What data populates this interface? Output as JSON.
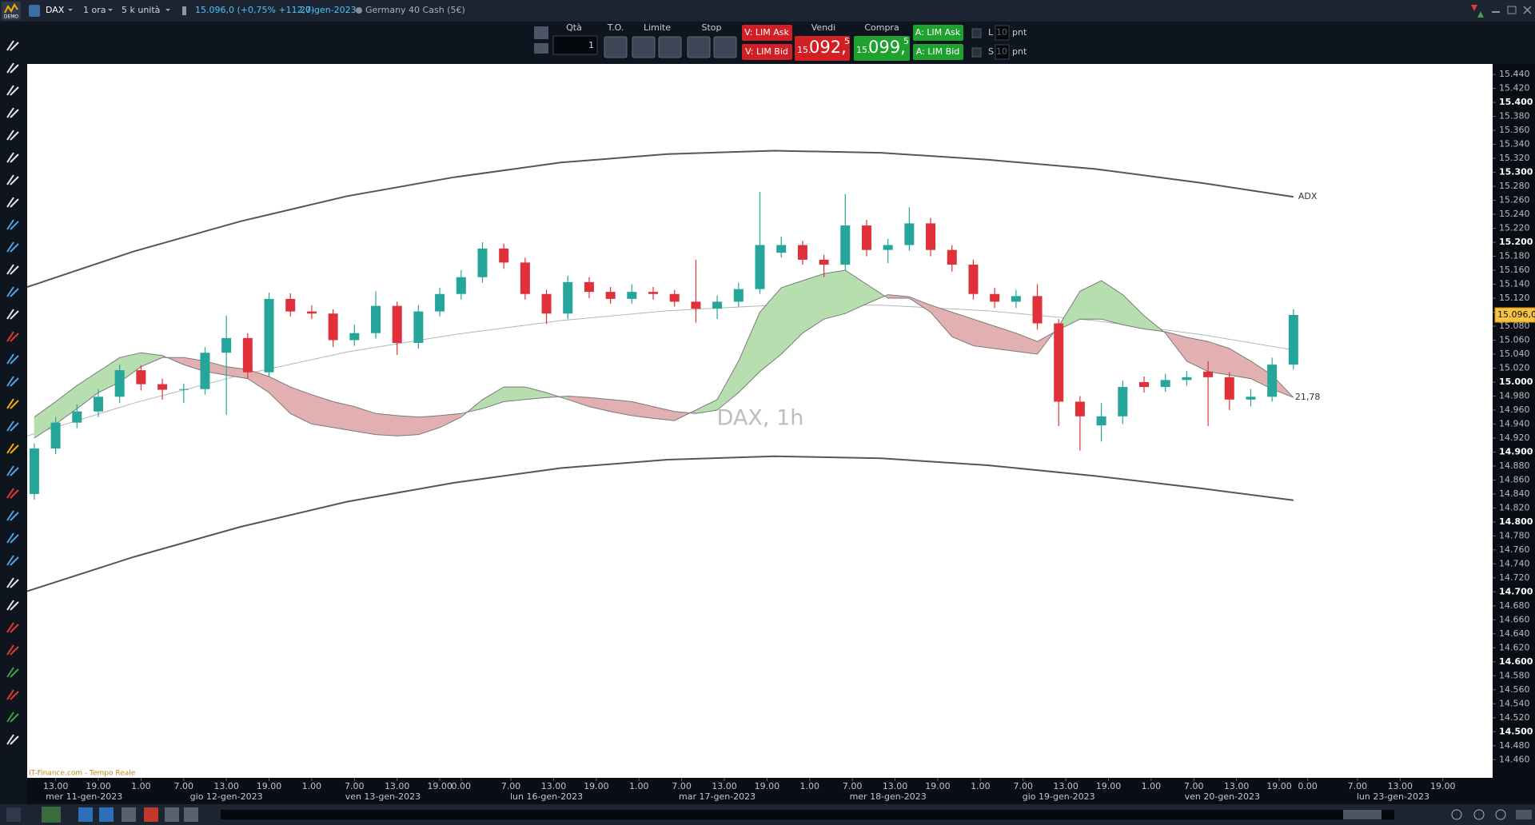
{
  "header": {
    "logo": "DEMO",
    "symbol": "DAX",
    "timeframe": "1 ora",
    "units": "5 k unità",
    "quote": "15.096,0 (+0,75% +112,7)",
    "date": "20-gen-2023",
    "instrument": "Germany 40 Cash (5€)"
  },
  "order_panel": {
    "qty_label": "Qtà",
    "qty": 1,
    "to_label": "T.O.",
    "limit_label": "Limite",
    "stop_label": "Stop",
    "sell_ask": "V: LIM Ask",
    "sell_bid": "V: LIM Bid",
    "sell_label": "Vendi",
    "sell_price": {
      "big": "15.",
      "mid": "092,",
      "small": "5"
    },
    "buy_label": "Compra",
    "buy_price": {
      "big": "15.",
      "mid": "099,",
      "small": "5"
    },
    "buy_ask": "A: LIM Ask",
    "buy_bid": "A: LIM Bid",
    "l_label": "L",
    "l_points": 10,
    "l_unit": "pnt",
    "s_label": "S",
    "s_points": 10,
    "s_unit": "pnt"
  },
  "chart_data": {
    "type": "candlestick",
    "watermark": "DAX, 1h",
    "upper_label": "ADX",
    "cloud_label": "21,78",
    "last_price": {
      "value": 15096,
      "label": "15.096,0"
    },
    "up_color": "#26a69a",
    "down_color": "#e0313b",
    "cloud_up_color": "#b6deae",
    "cloud_down_color": "#e2b0b0",
    "envelope_color": "#555555",
    "middle_color": "#b4b4b4",
    "xlim": [
      0,
      206
    ],
    "ylim": [
      14434,
      15455
    ],
    "yticks": [
      {
        "value": 15440,
        "label": "15.440"
      },
      {
        "value": 15420,
        "label": "15.420"
      },
      {
        "value": 15400,
        "label": "15.400"
      },
      {
        "value": 15380,
        "label": "15.380"
      },
      {
        "value": 15360,
        "label": "15.360"
      },
      {
        "value": 15340,
        "label": "15.340"
      },
      {
        "value": 15320,
        "label": "15.320"
      },
      {
        "value": 15300,
        "label": "15.300"
      },
      {
        "value": 15280,
        "label": "15.280"
      },
      {
        "value": 15260,
        "label": "15.260"
      },
      {
        "value": 15240,
        "label": "15.240"
      },
      {
        "value": 15220,
        "label": "15.220"
      },
      {
        "value": 15200,
        "label": "15.200"
      },
      {
        "value": 15180,
        "label": "15.180"
      },
      {
        "value": 15160,
        "label": "15.160"
      },
      {
        "value": 15140,
        "label": "15.140"
      },
      {
        "value": 15120,
        "label": "15.120"
      },
      {
        "value": 15100,
        "label": "15.100"
      },
      {
        "value": 15080,
        "label": "15.080"
      },
      {
        "value": 15060,
        "label": "15.060"
      },
      {
        "value": 15040,
        "label": "15.040"
      },
      {
        "value": 15020,
        "label": "15.020"
      },
      {
        "value": 15000,
        "label": "15.000"
      },
      {
        "value": 14980,
        "label": "14.980"
      },
      {
        "value": 14960,
        "label": "14.960"
      },
      {
        "value": 14940,
        "label": "14.940"
      },
      {
        "value": 14920,
        "label": "14.920"
      },
      {
        "value": 14900,
        "label": "14.900"
      },
      {
        "value": 14880,
        "label": "14.880"
      },
      {
        "value": 14860,
        "label": "14.860"
      },
      {
        "value": 14840,
        "label": "14.840"
      },
      {
        "value": 14820,
        "label": "14.820"
      },
      {
        "value": 14800,
        "label": "14.800"
      },
      {
        "value": 14780,
        "label": "14.780"
      },
      {
        "value": 14760,
        "label": "14.760"
      },
      {
        "value": 14740,
        "label": "14.740"
      },
      {
        "value": 14720,
        "label": "14.720"
      },
      {
        "value": 14700,
        "label": "14.700"
      },
      {
        "value": 14680,
        "label": "14.680"
      },
      {
        "value": 14660,
        "label": "14.660"
      },
      {
        "value": 14640,
        "label": "14.640"
      },
      {
        "value": 14620,
        "label": "14.620"
      },
      {
        "value": 14600,
        "label": "14.600"
      },
      {
        "value": 14580,
        "label": "14.580"
      },
      {
        "value": 14560,
        "label": "14.560"
      },
      {
        "value": 14540,
        "label": "14.540"
      },
      {
        "value": 14520,
        "label": "14.520"
      },
      {
        "value": 14500,
        "label": "14.500"
      },
      {
        "value": 14480,
        "label": "14.480"
      },
      {
        "value": 14460,
        "label": "14.460"
      }
    ],
    "xticks": [
      {
        "value": 4,
        "label": "13.00"
      },
      {
        "value": 10,
        "label": "19.00"
      },
      {
        "value": 16,
        "label": "1.00"
      },
      {
        "value": 22,
        "label": "7.00"
      },
      {
        "value": 28,
        "label": "13.00"
      },
      {
        "value": 34,
        "label": "19.00"
      },
      {
        "value": 40,
        "label": "1.00"
      },
      {
        "value": 46,
        "label": "7.00"
      },
      {
        "value": 52,
        "label": "13.00"
      },
      {
        "value": 58,
        "label": "19.00"
      },
      {
        "value": 61,
        "label": "0.00"
      },
      {
        "value": 68,
        "label": "7.00"
      },
      {
        "value": 74,
        "label": "13.00"
      },
      {
        "value": 80,
        "label": "19.00"
      },
      {
        "value": 86,
        "label": "1.00"
      },
      {
        "value": 92,
        "label": "7.00"
      },
      {
        "value": 98,
        "label": "13.00"
      },
      {
        "value": 104,
        "label": "19.00"
      },
      {
        "value": 110,
        "label": "1.00"
      },
      {
        "value": 116,
        "label": "7.00"
      },
      {
        "value": 122,
        "label": "13.00"
      },
      {
        "value": 128,
        "label": "19.00"
      },
      {
        "value": 134,
        "label": "1.00"
      },
      {
        "value": 140,
        "label": "7.00"
      },
      {
        "value": 146,
        "label": "13.00"
      },
      {
        "value": 152,
        "label": "19.00"
      },
      {
        "value": 158,
        "label": "1.00"
      },
      {
        "value": 164,
        "label": "7.00"
      },
      {
        "value": 170,
        "label": "13.00"
      },
      {
        "value": 176,
        "label": "19.00"
      },
      {
        "value": 180,
        "label": "0.00"
      },
      {
        "value": 187,
        "label": "7.00"
      },
      {
        "value": 193,
        "label": "13.00"
      },
      {
        "value": 199,
        "label": "19.00"
      }
    ],
    "date_ticks": [
      {
        "value": 8,
        "label": "mer 11-gen-2023"
      },
      {
        "value": 28,
        "label": "gio 12-gen-2023"
      },
      {
        "value": 50,
        "label": "ven 13-gen-2023"
      },
      {
        "value": 73,
        "label": "lun 16-gen-2023"
      },
      {
        "value": 97,
        "label": "mar 17-gen-2023"
      },
      {
        "value": 121,
        "label": "mer 18-gen-2023"
      },
      {
        "value": 145,
        "label": "gio 19-gen-2023"
      },
      {
        "value": 168,
        "label": "ven 20-gen-2023"
      },
      {
        "value": 192,
        "label": "lun 23-gen-2023"
      }
    ],
    "candles": {
      "x": [
        1,
        4,
        7,
        10,
        13,
        16,
        19,
        22,
        25,
        28,
        31,
        34,
        37,
        40,
        43,
        46,
        49,
        52,
        55,
        58,
        61,
        64,
        67,
        70,
        73,
        76,
        79,
        82,
        85,
        88,
        91,
        94,
        97,
        100,
        103,
        106,
        109,
        112,
        115,
        118,
        121,
        124,
        127,
        130,
        133,
        136,
        139,
        142,
        145,
        148,
        151,
        154,
        157,
        160,
        163,
        166,
        169,
        172,
        175,
        178
      ],
      "open": [
        14840,
        14905,
        14942,
        14958,
        14979,
        15017,
        14997,
        14989,
        14990,
        15042,
        15063,
        15014,
        15119,
        15101,
        15098,
        15060,
        15070,
        15109,
        15056,
        15101,
        15126,
        15150,
        15191,
        15171,
        15126,
        15098,
        15143,
        15129,
        15119,
        15129,
        15126,
        15115,
        15105,
        15115,
        15133,
        15185,
        15196,
        15175,
        15168,
        15224,
        15189,
        15196,
        15227,
        15189,
        15168,
        15126,
        15115,
        15123,
        15084,
        14972,
        14938,
        14951,
        15000,
        14993,
        15003,
        15015,
        15007,
        14975,
        14979,
        15025
      ],
      "high": [
        14912,
        14950,
        14968,
        14990,
        15025,
        15024,
        15005,
        14998,
        15050,
        15095,
        15070,
        15128,
        15127,
        15110,
        15104,
        15082,
        15130,
        15115,
        15110,
        15135,
        15160,
        15200,
        15198,
        15178,
        15132,
        15152,
        15150,
        15136,
        15140,
        15136,
        15132,
        15175,
        15124,
        15142,
        15272,
        15208,
        15202,
        15182,
        15269,
        15232,
        15205,
        15250,
        15235,
        15196,
        15175,
        15135,
        15132,
        15140,
        15090,
        14980,
        14970,
        15002,
        15008,
        15012,
        15016,
        15030,
        15014,
        14990,
        15035,
        15104
      ],
      "low": [
        14832,
        14897,
        14934,
        14950,
        14970,
        14988,
        14975,
        14970,
        14982,
        14953,
        15005,
        15008,
        15094,
        15090,
        15050,
        15052,
        15062,
        15039,
        15048,
        15094,
        15118,
        15142,
        15162,
        15118,
        15083,
        15090,
        15120,
        15112,
        15112,
        15118,
        15108,
        15085,
        15090,
        15108,
        15126,
        15178,
        15168,
        15150,
        15160,
        15180,
        15170,
        15188,
        15180,
        15158,
        15118,
        15106,
        15106,
        15075,
        14937,
        14902,
        14915,
        14940,
        14985,
        14986,
        14995,
        14937,
        14960,
        14965,
        14972,
        15018
      ],
      "close": [
        14905,
        14942,
        14958,
        14979,
        15017,
        14997,
        14989,
        14990,
        15042,
        15063,
        15014,
        15119,
        15101,
        15098,
        15060,
        15070,
        15109,
        15056,
        15101,
        15126,
        15150,
        15191,
        15171,
        15126,
        15098,
        15143,
        15129,
        15119,
        15129,
        15126,
        15115,
        15105,
        15115,
        15133,
        15196,
        15196,
        15175,
        15168,
        15224,
        15189,
        15196,
        15227,
        15189,
        15168,
        15126,
        15115,
        15123,
        15084,
        14972,
        14951,
        14951,
        14993,
        14993,
        15003,
        15007,
        15007,
        14975,
        14979,
        15025,
        15096
      ]
    },
    "cloud": {
      "fast": [
        14950,
        14972,
        14995,
        15015,
        15035,
        15042,
        15038,
        15025,
        15015,
        15010,
        15005,
        14985,
        14955,
        14940,
        14935,
        14930,
        14925,
        14923,
        14925,
        14935,
        14950,
        14975,
        14993,
        14993,
        14985,
        14975,
        14965,
        14958,
        14952,
        14948,
        14945,
        14960,
        14975,
        15030,
        15100,
        15135,
        15145,
        15155,
        15160,
        15140,
        15120,
        15120,
        15100,
        15065,
        15052,
        15048,
        15044,
        15040,
        15080,
        15130,
        15145,
        15125,
        15095,
        15070,
        15030,
        15015,
        15010,
        15005,
        14990,
        14978
      ],
      "slow": [
        14920,
        14940,
        14962,
        14985,
        15000,
        15022,
        15035,
        15035,
        15030,
        15022,
        15018,
        15008,
        14993,
        14982,
        14972,
        14965,
        14955,
        14952,
        14950,
        14952,
        14955,
        14962,
        14972,
        14975,
        14978,
        14980,
        14978,
        14975,
        14972,
        14965,
        14958,
        14955,
        14960,
        14985,
        15015,
        15040,
        15070,
        15090,
        15098,
        15112,
        15125,
        15122,
        15110,
        15100,
        15090,
        15080,
        15070,
        15058,
        15075,
        15090,
        15090,
        15082,
        15076,
        15072,
        15064,
        15058,
        15048,
        15030,
        15010,
        14978
      ]
    },
    "envelope": {
      "x": [
        0,
        15,
        30,
        45,
        60,
        75,
        90,
        105,
        120,
        135,
        150,
        165,
        178
      ],
      "upper": [
        15136,
        15187,
        15230,
        15266,
        15293,
        15314,
        15326,
        15331,
        15328,
        15318,
        15305,
        15285,
        15265
      ],
      "middle": [
        14923,
        14970,
        15010,
        15043,
        15068,
        15088,
        15102,
        15110,
        15110,
        15102,
        15088,
        15068,
        15046
      ],
      "lower": [
        14701,
        14750,
        14793,
        14829,
        14856,
        14877,
        14889,
        14894,
        14891,
        14881,
        14866,
        14848,
        14831
      ]
    }
  },
  "footer": {
    "source": "IT-Finance.com - Tempo Reale"
  }
}
